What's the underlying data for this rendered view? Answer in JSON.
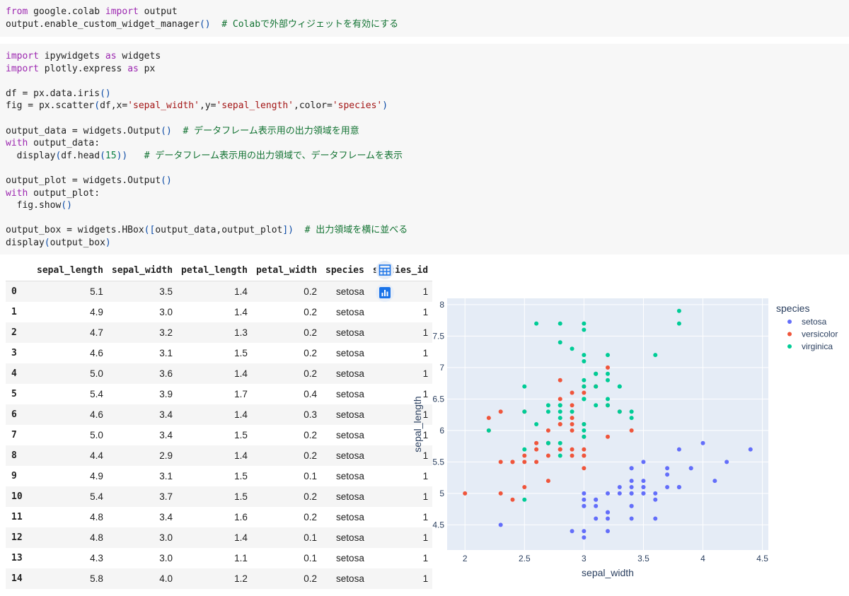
{
  "cells": [
    {
      "lines": [
        [
          [
            "kw",
            "from"
          ],
          [
            "t",
            " google.colab "
          ],
          [
            "kw",
            "import"
          ],
          [
            "t",
            " output"
          ]
        ],
        [
          [
            "t",
            "output.enable_custom_widget_manager"
          ],
          [
            "paren",
            "()"
          ],
          [
            "t",
            "  "
          ],
          [
            "cm",
            "# Colabで外部ウィジェットを有効にする"
          ]
        ]
      ]
    },
    {
      "lines": [
        [
          [
            "kw",
            "import"
          ],
          [
            "t",
            " ipywidgets "
          ],
          [
            "kw",
            "as"
          ],
          [
            "t",
            " widgets"
          ]
        ],
        [
          [
            "kw",
            "import"
          ],
          [
            "t",
            " plotly.express "
          ],
          [
            "kw",
            "as"
          ],
          [
            "t",
            " px"
          ]
        ],
        [],
        [
          [
            "t",
            "df = px.data.iris"
          ],
          [
            "paren",
            "()"
          ]
        ],
        [
          [
            "t",
            "fig = px.scatter"
          ],
          [
            "paren",
            "("
          ],
          [
            "t",
            "df,x="
          ],
          [
            "str",
            "'sepal_width'"
          ],
          [
            "t",
            ",y="
          ],
          [
            "str",
            "'sepal_length'"
          ],
          [
            "t",
            ",color="
          ],
          [
            "str",
            "'species'"
          ],
          [
            "paren",
            ")"
          ]
        ],
        [],
        [
          [
            "t",
            "output_data = widgets.Output"
          ],
          [
            "paren",
            "()"
          ],
          [
            "t",
            "  "
          ],
          [
            "cm",
            "# データフレーム表示用の出力領域を用意"
          ]
        ],
        [
          [
            "kw",
            "with"
          ],
          [
            "t",
            " output_data:"
          ]
        ],
        [
          [
            "t",
            "  display"
          ],
          [
            "paren",
            "("
          ],
          [
            "t",
            "df.head"
          ],
          [
            "paren",
            "("
          ],
          [
            "num",
            "15"
          ],
          [
            "paren",
            "))"
          ],
          [
            "t",
            "   "
          ],
          [
            "cm",
            "# データフレーム表示用の出力領域で、データフレームを表示"
          ]
        ],
        [],
        [
          [
            "t",
            "output_plot = widgets.Output"
          ],
          [
            "paren",
            "()"
          ]
        ],
        [
          [
            "kw",
            "with"
          ],
          [
            "t",
            " output_plot:"
          ]
        ],
        [
          [
            "t",
            "  fig.show"
          ],
          [
            "paren",
            "()"
          ]
        ],
        [],
        [
          [
            "t",
            "output_box = widgets.HBox"
          ],
          [
            "paren",
            "(["
          ],
          [
            "t",
            "output_data,output_plot"
          ],
          [
            "paren",
            "])"
          ],
          [
            "t",
            "  "
          ],
          [
            "cm",
            "# 出力領域を横に並べる"
          ]
        ],
        [
          [
            "t",
            "display"
          ],
          [
            "paren",
            "("
          ],
          [
            "t",
            "output_box"
          ],
          [
            "paren",
            ")"
          ]
        ]
      ]
    }
  ],
  "table": {
    "columns": [
      "",
      "sepal_length",
      "sepal_width",
      "petal_length",
      "petal_width",
      "species",
      "species_id"
    ],
    "rows": [
      [
        "0",
        "5.1",
        "3.5",
        "1.4",
        "0.2",
        "setosa",
        "1"
      ],
      [
        "1",
        "4.9",
        "3.0",
        "1.4",
        "0.2",
        "setosa",
        "1"
      ],
      [
        "2",
        "4.7",
        "3.2",
        "1.3",
        "0.2",
        "setosa",
        "1"
      ],
      [
        "3",
        "4.6",
        "3.1",
        "1.5",
        "0.2",
        "setosa",
        "1"
      ],
      [
        "4",
        "5.0",
        "3.6",
        "1.4",
        "0.2",
        "setosa",
        "1"
      ],
      [
        "5",
        "5.4",
        "3.9",
        "1.7",
        "0.4",
        "setosa",
        "1"
      ],
      [
        "6",
        "4.6",
        "3.4",
        "1.4",
        "0.3",
        "setosa",
        "1"
      ],
      [
        "7",
        "5.0",
        "3.4",
        "1.5",
        "0.2",
        "setosa",
        "1"
      ],
      [
        "8",
        "4.4",
        "2.9",
        "1.4",
        "0.2",
        "setosa",
        "1"
      ],
      [
        "9",
        "4.9",
        "3.1",
        "1.5",
        "0.1",
        "setosa",
        "1"
      ],
      [
        "10",
        "5.4",
        "3.7",
        "1.5",
        "0.2",
        "setosa",
        "1"
      ],
      [
        "11",
        "4.8",
        "3.4",
        "1.6",
        "0.2",
        "setosa",
        "1"
      ],
      [
        "12",
        "4.8",
        "3.0",
        "1.4",
        "0.1",
        "setosa",
        "1"
      ],
      [
        "13",
        "4.3",
        "3.0",
        "1.1",
        "0.1",
        "setosa",
        "1"
      ],
      [
        "14",
        "5.8",
        "4.0",
        "1.2",
        "0.2",
        "setosa",
        "1"
      ]
    ]
  },
  "buttons": {
    "table_icon": "table-icon",
    "chart_icon": "bar-chart-icon",
    "accent": "#1a73e8"
  },
  "chart_data": {
    "type": "scatter",
    "xlabel": "sepal_width",
    "ylabel": "sepal_length",
    "xlim": [
      1.85,
      4.55
    ],
    "ylim": [
      4.1,
      8.1
    ],
    "xticks": [
      "2",
      "2.5",
      "3",
      "3.5",
      "4",
      "4.5"
    ],
    "yticks": [
      "4.5",
      "5",
      "5.5",
      "6",
      "6.5",
      "7",
      "7.5",
      "8"
    ],
    "legend_title": "species",
    "legend_position": "top-right",
    "grid": true,
    "series": [
      {
        "name": "setosa",
        "color": "#636efa",
        "points": [
          [
            3.5,
            5.1
          ],
          [
            3.0,
            4.9
          ],
          [
            3.2,
            4.7
          ],
          [
            3.1,
            4.6
          ],
          [
            3.6,
            5.0
          ],
          [
            3.9,
            5.4
          ],
          [
            3.4,
            4.6
          ],
          [
            3.4,
            5.0
          ],
          [
            2.9,
            4.4
          ],
          [
            3.1,
            4.9
          ],
          [
            3.7,
            5.4
          ],
          [
            3.4,
            4.8
          ],
          [
            3.0,
            4.8
          ],
          [
            3.0,
            4.3
          ],
          [
            4.0,
            5.8
          ],
          [
            4.4,
            5.7
          ],
          [
            3.9,
            5.4
          ],
          [
            3.5,
            5.1
          ],
          [
            3.8,
            5.7
          ],
          [
            3.8,
            5.1
          ],
          [
            3.4,
            5.4
          ],
          [
            3.7,
            5.1
          ],
          [
            3.6,
            4.6
          ],
          [
            3.3,
            5.1
          ],
          [
            3.4,
            4.8
          ],
          [
            3.0,
            5.0
          ],
          [
            3.4,
            5.0
          ],
          [
            3.5,
            5.2
          ],
          [
            3.4,
            5.2
          ],
          [
            3.2,
            4.7
          ],
          [
            3.1,
            4.8
          ],
          [
            3.4,
            5.4
          ],
          [
            4.1,
            5.2
          ],
          [
            4.2,
            5.5
          ],
          [
            3.1,
            4.9
          ],
          [
            3.2,
            5.0
          ],
          [
            3.5,
            5.5
          ],
          [
            3.6,
            4.9
          ],
          [
            3.0,
            4.4
          ],
          [
            3.4,
            5.1
          ],
          [
            3.5,
            5.0
          ],
          [
            2.3,
            4.5
          ],
          [
            3.2,
            4.4
          ],
          [
            3.5,
            5.0
          ],
          [
            3.8,
            5.1
          ],
          [
            3.0,
            4.8
          ],
          [
            3.8,
            5.1
          ],
          [
            3.2,
            4.6
          ],
          [
            3.7,
            5.3
          ],
          [
            3.3,
            5.0
          ]
        ]
      },
      {
        "name": "versicolor",
        "color": "#ef553b",
        "points": [
          [
            3.2,
            7.0
          ],
          [
            3.2,
            6.4
          ],
          [
            3.1,
            6.9
          ],
          [
            2.3,
            5.5
          ],
          [
            2.8,
            6.5
          ],
          [
            2.8,
            5.7
          ],
          [
            3.3,
            6.3
          ],
          [
            2.4,
            4.9
          ],
          [
            2.9,
            6.6
          ],
          [
            2.7,
            5.2
          ],
          [
            2.0,
            5.0
          ],
          [
            3.0,
            5.9
          ],
          [
            2.2,
            6.0
          ],
          [
            2.9,
            6.1
          ],
          [
            2.9,
            5.6
          ],
          [
            3.1,
            6.7
          ],
          [
            3.0,
            5.6
          ],
          [
            2.7,
            5.8
          ],
          [
            2.2,
            6.2
          ],
          [
            2.5,
            5.6
          ],
          [
            3.2,
            5.9
          ],
          [
            2.8,
            6.1
          ],
          [
            2.5,
            6.3
          ],
          [
            2.8,
            6.1
          ],
          [
            2.9,
            6.4
          ],
          [
            3.0,
            6.6
          ],
          [
            2.8,
            6.8
          ],
          [
            3.0,
            6.7
          ],
          [
            2.9,
            6.0
          ],
          [
            2.6,
            5.7
          ],
          [
            2.4,
            5.5
          ],
          [
            2.4,
            5.5
          ],
          [
            2.7,
            5.8
          ],
          [
            2.7,
            6.0
          ],
          [
            3.0,
            5.4
          ],
          [
            3.4,
            6.0
          ],
          [
            3.1,
            6.7
          ],
          [
            2.3,
            6.3
          ],
          [
            3.0,
            5.6
          ],
          [
            2.5,
            5.5
          ],
          [
            2.6,
            5.5
          ],
          [
            3.0,
            6.1
          ],
          [
            2.6,
            5.8
          ],
          [
            2.3,
            5.0
          ],
          [
            2.7,
            5.6
          ],
          [
            3.0,
            5.7
          ],
          [
            2.9,
            5.7
          ],
          [
            2.9,
            6.2
          ],
          [
            2.5,
            5.1
          ],
          [
            2.8,
            5.7
          ]
        ]
      },
      {
        "name": "virginica",
        "color": "#00cc96",
        "points": [
          [
            3.3,
            6.3
          ],
          [
            2.7,
            5.8
          ],
          [
            3.0,
            7.1
          ],
          [
            2.9,
            6.3
          ],
          [
            3.0,
            6.5
          ],
          [
            3.0,
            7.6
          ],
          [
            2.5,
            4.9
          ],
          [
            2.9,
            7.3
          ],
          [
            2.5,
            6.7
          ],
          [
            3.6,
            7.2
          ],
          [
            3.2,
            6.5
          ],
          [
            2.7,
            6.4
          ],
          [
            3.0,
            6.8
          ],
          [
            2.5,
            5.7
          ],
          [
            2.8,
            5.8
          ],
          [
            3.2,
            6.4
          ],
          [
            3.0,
            6.5
          ],
          [
            3.8,
            7.7
          ],
          [
            2.6,
            7.7
          ],
          [
            2.2,
            6.0
          ],
          [
            3.2,
            6.9
          ],
          [
            2.8,
            5.6
          ],
          [
            2.8,
            7.7
          ],
          [
            2.7,
            6.3
          ],
          [
            3.3,
            6.7
          ],
          [
            3.2,
            7.2
          ],
          [
            2.8,
            6.2
          ],
          [
            3.0,
            6.1
          ],
          [
            2.8,
            6.4
          ],
          [
            3.0,
            7.2
          ],
          [
            2.8,
            7.4
          ],
          [
            3.8,
            7.9
          ],
          [
            2.8,
            6.4
          ],
          [
            2.8,
            6.3
          ],
          [
            2.6,
            6.1
          ],
          [
            3.0,
            7.7
          ],
          [
            3.4,
            6.3
          ],
          [
            3.1,
            6.4
          ],
          [
            3.0,
            6.0
          ],
          [
            3.1,
            6.9
          ],
          [
            3.1,
            6.7
          ],
          [
            3.1,
            6.9
          ],
          [
            2.7,
            5.8
          ],
          [
            3.2,
            6.8
          ],
          [
            3.3,
            6.7
          ],
          [
            3.0,
            6.7
          ],
          [
            2.5,
            6.3
          ],
          [
            3.0,
            6.5
          ],
          [
            3.4,
            6.2
          ],
          [
            3.0,
            5.9
          ]
        ]
      }
    ]
  }
}
